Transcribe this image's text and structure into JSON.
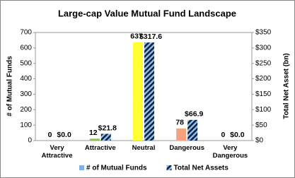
{
  "chart_data": {
    "type": "bar",
    "title": "Large-cap Value Mutual Fund Landscape",
    "categories": [
      "Very Attractive",
      "Attractive",
      "Neutral",
      "Dangerous",
      "Very Dangerous"
    ],
    "series": [
      {
        "name": "# of Mutual Funds",
        "color": "#7fb2e5",
        "colors": [
          "#1e7b1e",
          "#8fbf5a",
          "#ffff33",
          "#f5a27e",
          "#c00000"
        ],
        "values": [
          0,
          12,
          637,
          78,
          0
        ]
      },
      {
        "name": "Total Net Assets",
        "color": "#1f2a5a",
        "axis": "y2",
        "values": [
          0,
          21.8,
          317.6,
          66.9,
          0
        ],
        "value_labels": [
          "$0.0",
          "$21.8",
          "$317.6",
          "$66.9",
          "$0.0"
        ]
      }
    ],
    "ylabel": "# of Mutual Funds",
    "y2label": "Total Net Asset (bn)",
    "ylim": [
      0,
      700
    ],
    "yticks": [
      0,
      100,
      200,
      300,
      400,
      500,
      600,
      700
    ],
    "y2lim": [
      0,
      350
    ],
    "y2ticks": [
      {
        "value": 0,
        "label": "$0"
      },
      {
        "value": 50,
        "label": "$50"
      },
      {
        "value": 100,
        "label": "$100"
      },
      {
        "value": 150,
        "label": "$150"
      },
      {
        "value": 200,
        "label": "$200"
      },
      {
        "value": 250,
        "label": "$250"
      },
      {
        "value": 300,
        "label": "$300"
      },
      {
        "value": 350,
        "label": "$350"
      }
    ],
    "grid": false,
    "legend": "bottom"
  }
}
